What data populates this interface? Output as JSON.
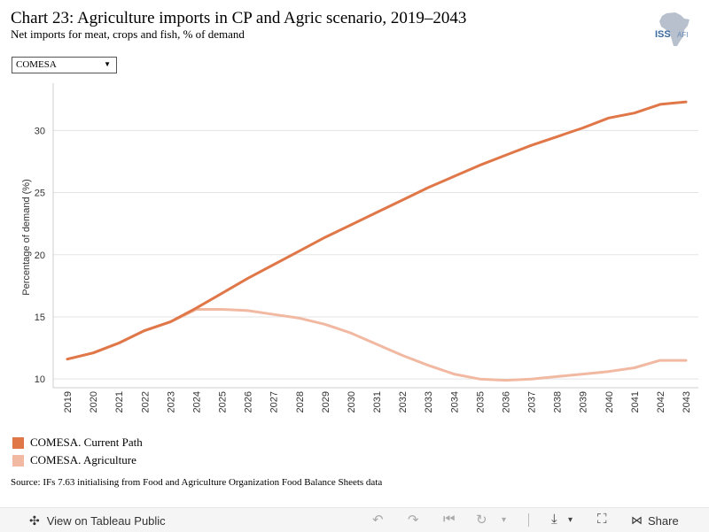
{
  "header": {
    "title": "Chart 23: Agriculture imports in CP and Agric scenario, 2019–2043",
    "subtitle": "Net imports for meat, crops and fish, % of demand",
    "logo_text": "ISS",
    "logo_suffix": "AFI"
  },
  "filter": {
    "selected": "COMESA"
  },
  "legend": {
    "items": [
      {
        "label": "COMESA. Current Path",
        "color": "#e07748"
      },
      {
        "label": "COMESA. Agriculture",
        "color": "#f2b9a2"
      }
    ]
  },
  "source": "Source: IFs 7.63 initialising from Food and Agriculture Organization Food Balance Sheets data",
  "footer": {
    "view_label": "View on Tableau Public",
    "share_label": "Share"
  },
  "chart_data": {
    "type": "line",
    "title": "",
    "xlabel": "",
    "ylabel": "Percentage of demand (%)",
    "ylim": [
      9.3,
      33.8
    ],
    "yticks": [
      10,
      15,
      20,
      25,
      30
    ],
    "categories": [
      "2019",
      "2020",
      "2021",
      "2022",
      "2023",
      "2024",
      "2025",
      "2026",
      "2027",
      "2028",
      "2029",
      "2030",
      "2031",
      "2032",
      "2033",
      "2034",
      "2035",
      "2036",
      "2037",
      "2038",
      "2039",
      "2040",
      "2041",
      "2042",
      "2043"
    ],
    "series": [
      {
        "name": "COMESA. Current Path",
        "color": "#e07748",
        "values": [
          11.6,
          12.1,
          12.9,
          13.9,
          14.6,
          15.7,
          16.9,
          18.1,
          19.2,
          20.3,
          21.4,
          22.4,
          23.4,
          24.4,
          25.4,
          26.3,
          27.2,
          28.0,
          28.8,
          29.5,
          30.2,
          31.0,
          31.4,
          32.1,
          32.3
        ]
      },
      {
        "name": "COMESA. Agriculture",
        "color": "#f2b9a2",
        "values": [
          11.6,
          12.1,
          12.9,
          13.9,
          14.6,
          15.6,
          15.6,
          15.5,
          15.2,
          14.9,
          14.4,
          13.7,
          12.8,
          11.9,
          11.1,
          10.4,
          10.0,
          9.9,
          10.0,
          10.2,
          10.4,
          10.6,
          10.9,
          11.5,
          11.5
        ]
      }
    ],
    "grid": true,
    "legend_position": "bottom-left"
  }
}
